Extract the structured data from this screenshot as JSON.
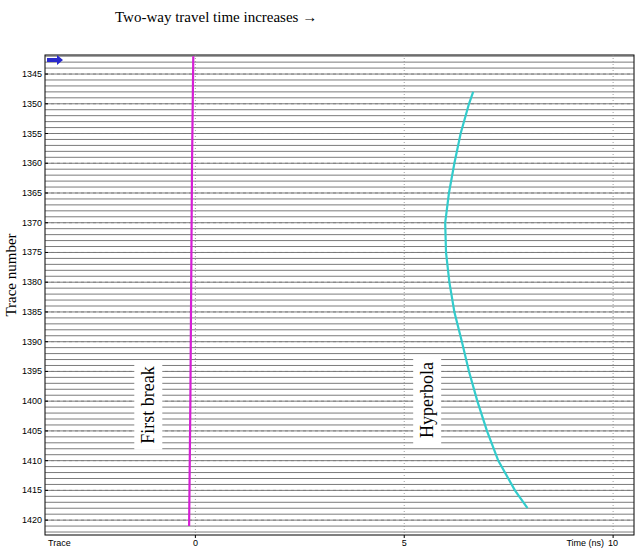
{
  "chart_data": {
    "type": "line",
    "title": "Two-way travel time increases →",
    "x_label": "Time (ns)",
    "y_label": "Trace number",
    "y_caption": "Trace",
    "xlim": [
      -3.6,
      10.5
    ],
    "ylim": [
      1341.8,
      1422.5
    ],
    "xticks": [
      0,
      5,
      10
    ],
    "yticks": [
      1345,
      1350,
      1355,
      1360,
      1365,
      1370,
      1375,
      1380,
      1385,
      1390,
      1395,
      1400,
      1405,
      1410,
      1415,
      1420
    ],
    "grid": true,
    "series": [
      {
        "name": "First break",
        "color": "#d61ed6",
        "line_style": "solid",
        "x": [
          -0.05,
          -0.08,
          -0.1,
          -0.12,
          -0.15
        ],
        "values": [
          1342,
          1360,
          1380,
          1400,
          1421
        ]
      },
      {
        "name": "Hyperbola",
        "color": "#33cccc",
        "line_style": "solid",
        "x": [
          6.65,
          6.55,
          6.35,
          6.2,
          6.07,
          5.98,
          6.0,
          6.08,
          6.2,
          6.38,
          6.55,
          6.75,
          6.98,
          7.25,
          7.65,
          7.95
        ],
        "values": [
          1348,
          1350,
          1355,
          1360,
          1365,
          1370,
          1375,
          1380,
          1385,
          1390,
          1395,
          1400,
          1405,
          1410,
          1415,
          1418
        ]
      }
    ]
  }
}
